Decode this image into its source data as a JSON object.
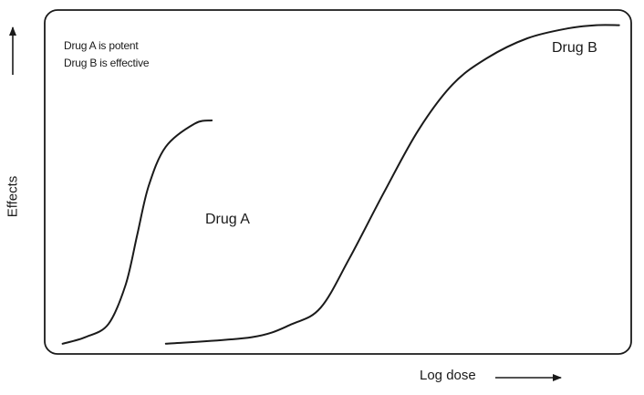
{
  "chart_data": {
    "type": "line",
    "title": "",
    "xlabel": "Log dose",
    "ylabel": "Effects",
    "annotations": [
      "Drug A is potent",
      "Drug B is effective"
    ],
    "x_scale": "log",
    "grid": false,
    "legend": "none",
    "xlim": [
      0,
      100
    ],
    "ylim": [
      0,
      100
    ],
    "series": [
      {
        "name": "Drug A",
        "color": "#1a1a1a",
        "x": [
          2,
          6,
          10,
          13,
          15,
          17,
          20,
          25,
          28
        ],
        "y": [
          2,
          4,
          8,
          20,
          35,
          50,
          62,
          69,
          70
        ]
      },
      {
        "name": "Drug B",
        "color": "#1a1a1a",
        "x": [
          20,
          35,
          42,
          47,
          52,
          58,
          64,
          70,
          76,
          83,
          90,
          95,
          99
        ],
        "y": [
          2,
          4,
          8,
          13,
          28,
          48,
          67,
          81,
          89,
          95,
          98,
          99,
          99
        ]
      }
    ]
  }
}
